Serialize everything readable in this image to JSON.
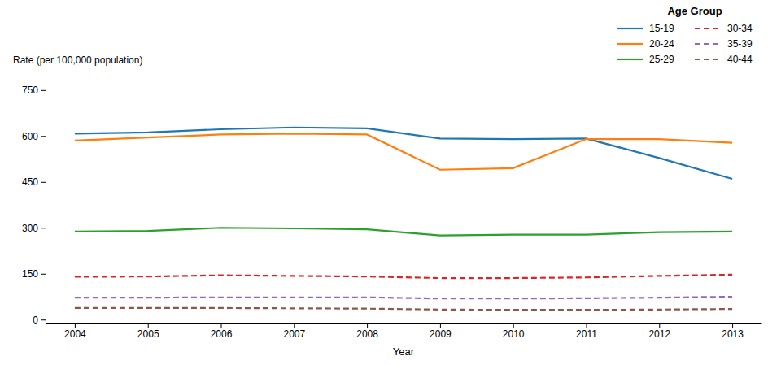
{
  "chart_data": {
    "type": "line",
    "xlabel": "Year",
    "ylabel": "Rate (per 100,000 population)",
    "legend_title": "Age Group",
    "x": [
      2004,
      2005,
      2006,
      2007,
      2008,
      2009,
      2010,
      2011,
      2012,
      2013
    ],
    "series": [
      {
        "name": "15-19",
        "line_style": "solid",
        "values": [
          608,
          612,
          622,
          628,
          625,
          592,
          590,
          592,
          528,
          460
        ]
      },
      {
        "name": "20-24",
        "line_style": "solid",
        "values": [
          585,
          595,
          605,
          608,
          605,
          490,
          495,
          590,
          590,
          578
        ]
      },
      {
        "name": "25-29",
        "line_style": "solid",
        "values": [
          288,
          290,
          300,
          298,
          295,
          275,
          278,
          278,
          286,
          288
        ]
      },
      {
        "name": "30-34",
        "line_style": "dashed",
        "values": [
          140,
          141,
          145,
          143,
          141,
          136,
          136,
          138,
          143,
          147
        ]
      },
      {
        "name": "35-39",
        "line_style": "dashed",
        "values": [
          72,
          72,
          73,
          73,
          73,
          69,
          69,
          70,
          72,
          75
        ]
      },
      {
        "name": "40-44",
        "line_style": "dashed",
        "values": [
          38,
          38,
          38,
          37,
          36,
          33,
          32,
          32,
          33,
          35
        ]
      }
    ],
    "xlim": [
      2003.6,
      2013.4
    ],
    "xticks": [
      2004,
      2005,
      2006,
      2007,
      2008,
      2009,
      2010,
      2011,
      2012,
      2013
    ],
    "ylim": [
      -10,
      800
    ],
    "yticks": [
      0,
      150,
      300,
      450,
      600,
      750
    ],
    "grid": false,
    "legend": "top-right"
  }
}
